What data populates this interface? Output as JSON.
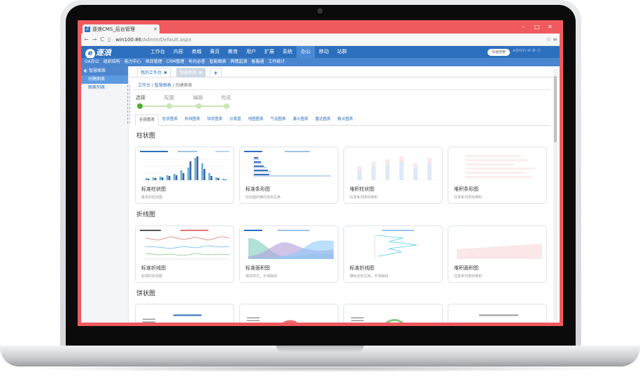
{
  "browser": {
    "tab_title": "逐浪CMS_后台管理",
    "url_host": "win100:86",
    "url_path": "/Admin/Default.aspx"
  },
  "topnav": {
    "logo_text": "逐浪",
    "menu": [
      "工作台",
      "内容",
      "商城",
      "黄页",
      "教育",
      "用户",
      "扩展",
      "系统",
      "办公",
      "移动",
      "站群"
    ],
    "active_menu": "办公",
    "quick_search": "快速搜索",
    "user": "admin"
  },
  "subnav": [
    "OA办公",
    "组织结构",
    "能力中心",
    "项目管理",
    "CRM管理",
    "有问必答",
    "智能图表",
    "舆情监测",
    "客服通",
    "工作统计"
  ],
  "sidebar": {
    "header": "智慧图表",
    "items": [
      "创建图表",
      "图表列表"
    ]
  },
  "workspace_tabs": [
    {
      "label": "我的工作台",
      "close": "✖"
    },
    {
      "label": "智能图表",
      "close": "✖"
    },
    {
      "label": "+"
    }
  ],
  "breadcrumb": {
    "items": [
      "工作台",
      "智慧图表",
      "创建图表"
    ],
    "sep": "/"
  },
  "steps": [
    "选择",
    "配置",
    "编辑",
    "完成"
  ],
  "chart_type_tabs": [
    "全部图表",
    "柱状图表",
    "折线图表",
    "饼状图表",
    "仪表盘",
    "地图图表",
    "气泡图表",
    "漏斗图表",
    "雷达图表",
    "散点图表"
  ],
  "sections": {
    "bar": {
      "title": "柱状图",
      "cards": [
        {
          "name": "标准柱状图",
          "desc": "基本的柱状图"
        },
        {
          "name": "标准条形图",
          "desc": "柱状图的横向坐标互换"
        },
        {
          "name": "堆积柱状图",
          "desc": "任意系列类别堆积"
        },
        {
          "name": "堆积条形图",
          "desc": "任意系列类别堆积"
        }
      ]
    },
    "line": {
      "title": "折线图",
      "cards": [
        {
          "name": "标准折线图",
          "desc": "标准的折线图"
        },
        {
          "name": "标准面积图",
          "desc": "填充样式，平滑曲线"
        },
        {
          "name": "标准折线图",
          "desc": "横纵坐标互换，平滑曲线"
        },
        {
          "name": "堆积面积图",
          "desc": "任意系列类别堆积"
        }
      ]
    },
    "pie": {
      "title": "饼状图"
    }
  },
  "colors": {
    "brand_blue": "#2c6fbe",
    "subnav_blue": "#4a85cf",
    "step_green": "#4eae2f",
    "frame_red": "#ef5a5f"
  }
}
